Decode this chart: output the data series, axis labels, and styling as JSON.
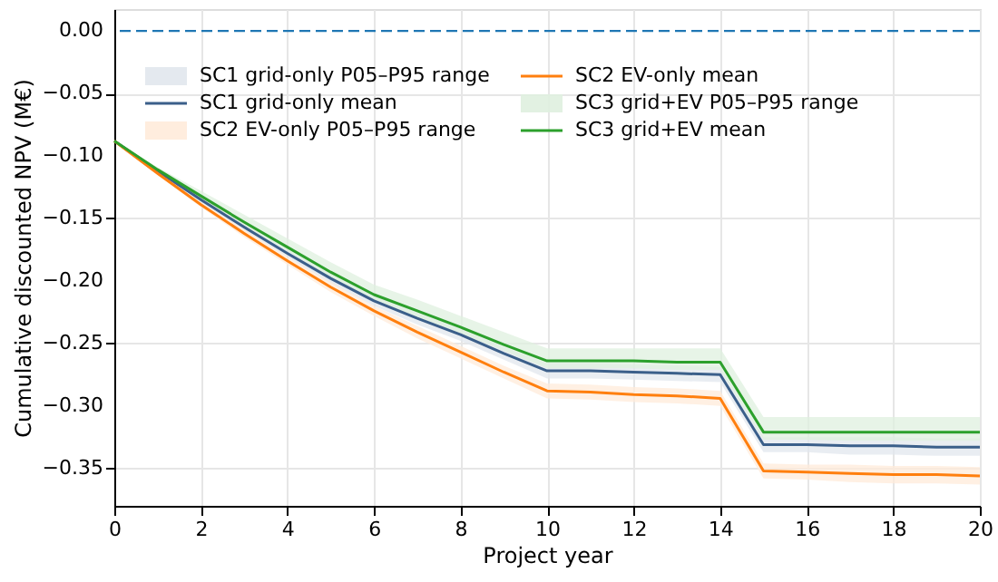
{
  "chart_data": {
    "type": "line",
    "xlabel": "Project year",
    "ylabel": "Cumulative discounted NPV (M€)",
    "x": [
      0,
      1,
      2,
      3,
      4,
      5,
      6,
      7,
      8,
      9,
      10,
      11,
      12,
      13,
      14,
      15,
      16,
      17,
      18,
      19,
      20
    ],
    "series": [
      {
        "name": "SC1 grid-only mean",
        "color": "#3b5f8a",
        "values": [
          -0.088,
          -0.112,
          -0.135,
          -0.157,
          -0.178,
          -0.198,
          -0.216,
          -0.23,
          -0.243,
          -0.258,
          -0.272,
          -0.272,
          -0.273,
          -0.274,
          -0.275,
          -0.331,
          -0.331,
          -0.332,
          -0.332,
          -0.333,
          -0.333
        ],
        "lower": [
          -0.088,
          -0.113,
          -0.137,
          -0.16,
          -0.181,
          -0.202,
          -0.22,
          -0.235,
          -0.248,
          -0.263,
          -0.278,
          -0.278,
          -0.279,
          -0.28,
          -0.281,
          -0.337,
          -0.337,
          -0.339,
          -0.339,
          -0.34,
          -0.34
        ],
        "upper": [
          -0.088,
          -0.111,
          -0.133,
          -0.154,
          -0.175,
          -0.194,
          -0.212,
          -0.225,
          -0.238,
          -0.253,
          -0.266,
          -0.266,
          -0.267,
          -0.268,
          -0.269,
          -0.325,
          -0.325,
          -0.325,
          -0.325,
          -0.326,
          -0.326
        ]
      },
      {
        "name": "SC2 EV-only mean",
        "color": "#ff7f0e",
        "values": [
          -0.088,
          -0.114,
          -0.139,
          -0.162,
          -0.184,
          -0.205,
          -0.224,
          -0.241,
          -0.257,
          -0.273,
          -0.288,
          -0.289,
          -0.291,
          -0.292,
          -0.294,
          -0.352,
          -0.353,
          -0.354,
          -0.355,
          -0.355,
          -0.356
        ],
        "lower": [
          -0.088,
          -0.115,
          -0.141,
          -0.165,
          -0.187,
          -0.209,
          -0.228,
          -0.246,
          -0.262,
          -0.278,
          -0.294,
          -0.295,
          -0.297,
          -0.298,
          -0.3,
          -0.358,
          -0.359,
          -0.361,
          -0.362,
          -0.362,
          -0.363
        ],
        "upper": [
          -0.088,
          -0.113,
          -0.137,
          -0.159,
          -0.181,
          -0.201,
          -0.22,
          -0.236,
          -0.252,
          -0.268,
          -0.282,
          -0.283,
          -0.285,
          -0.286,
          -0.288,
          -0.346,
          -0.347,
          -0.347,
          -0.348,
          -0.348,
          -0.349
        ]
      },
      {
        "name": "SC3 grid+EV mean",
        "color": "#2ca02c",
        "values": [
          -0.088,
          -0.111,
          -0.132,
          -0.153,
          -0.173,
          -0.193,
          -0.211,
          -0.224,
          -0.237,
          -0.251,
          -0.264,
          -0.264,
          -0.264,
          -0.265,
          -0.265,
          -0.321,
          -0.321,
          -0.321,
          -0.321,
          -0.321,
          -0.321
        ],
        "lower": [
          -0.088,
          -0.112,
          -0.134,
          -0.156,
          -0.176,
          -0.197,
          -0.215,
          -0.229,
          -0.242,
          -0.256,
          -0.27,
          -0.27,
          -0.27,
          -0.271,
          -0.271,
          -0.327,
          -0.327,
          -0.328,
          -0.328,
          -0.328,
          -0.328
        ],
        "upper": [
          -0.088,
          -0.109,
          -0.128,
          -0.147,
          -0.166,
          -0.185,
          -0.203,
          -0.215,
          -0.228,
          -0.241,
          -0.254,
          -0.254,
          -0.254,
          -0.254,
          -0.254,
          -0.309,
          -0.309,
          -0.309,
          -0.309,
          -0.309,
          -0.309
        ]
      }
    ],
    "annotations": [
      "SC1 grid-only P05–P95 range",
      "SC2 EV-only P05–P95 range",
      "SC3 grid+EV P05–P95 range"
    ],
    "ref_lines": [
      {
        "axis": "y",
        "value": 0,
        "color": "#1f77b4",
        "line_style": "dashed"
      }
    ],
    "xlim": [
      0,
      20
    ],
    "xticks": [
      0,
      2,
      4,
      6,
      8,
      10,
      12,
      14,
      16,
      18,
      20
    ],
    "ylim": [
      -0.38,
      0.0175
    ],
    "yticks": [
      {
        "value": 0,
        "label": "0.00"
      },
      {
        "value": -0.05,
        "label": "−0.05"
      },
      {
        "value": -0.1,
        "label": "−0.10"
      },
      {
        "value": -0.15,
        "label": "−0.15"
      },
      {
        "value": -0.2,
        "label": "−0.20"
      },
      {
        "value": -0.25,
        "label": "−0.25"
      },
      {
        "value": -0.3,
        "label": "−0.30"
      },
      {
        "value": -0.35,
        "label": "−0.35"
      }
    ],
    "grid": true,
    "legend": "top left",
    "line_style": "solid",
    "marker": "none"
  }
}
